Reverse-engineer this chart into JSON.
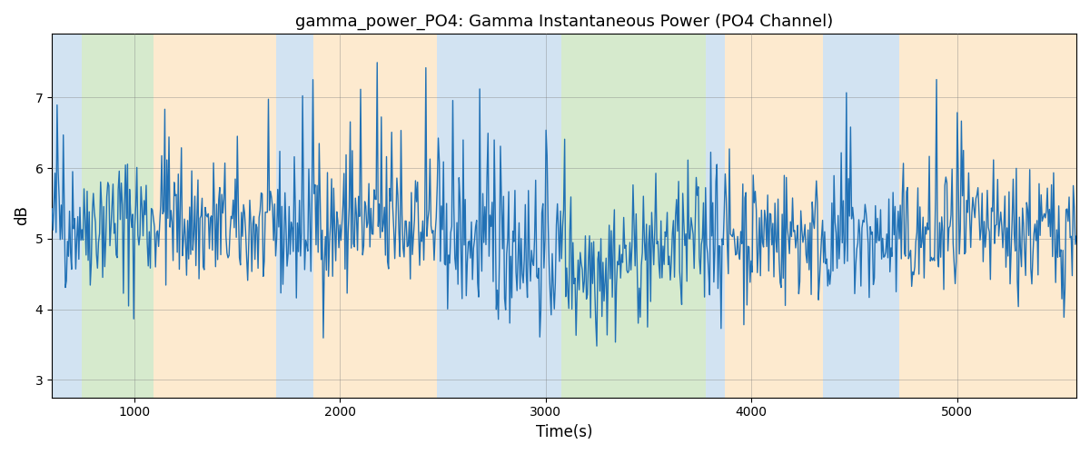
{
  "title": "gamma_power_PO4: Gamma Instantaneous Power (PO4 Channel)",
  "xlabel": "Time(s)",
  "ylabel": "dB",
  "xlim": [
    600,
    5580
  ],
  "ylim": [
    2.75,
    7.9
  ],
  "yticks": [
    3,
    4,
    5,
    6,
    7
  ],
  "xticks": [
    1000,
    2000,
    3000,
    4000,
    5000
  ],
  "line_color": "#2171b5",
  "line_width": 1.0,
  "bg_bands": [
    {
      "xmin": 600,
      "xmax": 744,
      "color": "#aecde8",
      "alpha": 0.55
    },
    {
      "xmin": 744,
      "xmax": 1094,
      "color": "#b5d9a5",
      "alpha": 0.55
    },
    {
      "xmin": 1094,
      "xmax": 1688,
      "color": "#fdd9a8",
      "alpha": 0.55
    },
    {
      "xmin": 1688,
      "xmax": 1870,
      "color": "#aecde8",
      "alpha": 0.55
    },
    {
      "xmin": 1870,
      "xmax": 2472,
      "color": "#fdd9a8",
      "alpha": 0.55
    },
    {
      "xmin": 2472,
      "xmax": 3075,
      "color": "#aecde8",
      "alpha": 0.55
    },
    {
      "xmin": 3075,
      "xmax": 3160,
      "color": "#b5d9a5",
      "alpha": 0.55
    },
    {
      "xmin": 3160,
      "xmax": 3780,
      "color": "#b5d9a5",
      "alpha": 0.55
    },
    {
      "xmin": 3780,
      "xmax": 3870,
      "color": "#aecde8",
      "alpha": 0.55
    },
    {
      "xmin": 3870,
      "xmax": 4350,
      "color": "#fdd9a8",
      "alpha": 0.55
    },
    {
      "xmin": 4350,
      "xmax": 4720,
      "color": "#aecde8",
      "alpha": 0.55
    },
    {
      "xmin": 4720,
      "xmax": 5580,
      "color": "#fdd9a8",
      "alpha": 0.55
    }
  ],
  "seed": 42,
  "n_points": 990,
  "mean": 5.0,
  "std": 0.48
}
